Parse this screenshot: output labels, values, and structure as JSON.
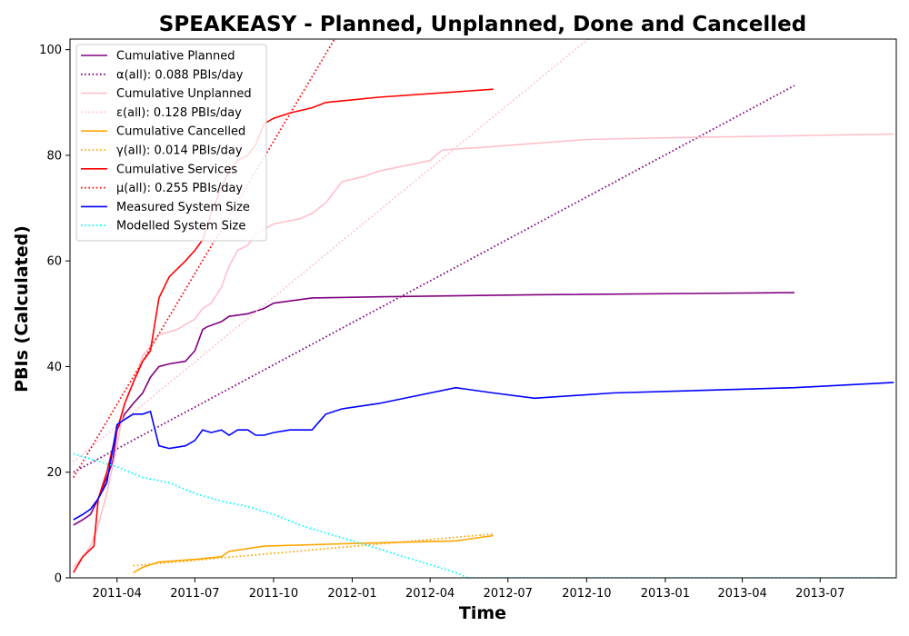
{
  "chart_data": {
    "type": "line",
    "title": "SPEAKEASY - Planned, Unplanned, Done  and Cancelled",
    "xlabel": "Time",
    "ylabel": "PBIs (Calculated)",
    "xlim": [
      "2011-02-05",
      "2013-09-28"
    ],
    "ylim": [
      0,
      102
    ],
    "xticks": [
      "2011-04",
      "2011-07",
      "2011-10",
      "2012-01",
      "2012-04",
      "2012-07",
      "2012-10",
      "2013-01",
      "2013-04",
      "2013-07"
    ],
    "yticks": [
      0,
      20,
      40,
      60,
      80,
      100
    ],
    "grid": false,
    "legend_position": "top-left",
    "series": [
      {
        "name": "Cumulative Planned",
        "color": "#800080",
        "style": "solid",
        "x": [
          "2011-02-09",
          "2011-02-20",
          "2011-03-01",
          "2011-03-10",
          "2011-03-20",
          "2011-03-27",
          "2011-04-01",
          "2011-04-10",
          "2011-04-20",
          "2011-05-01",
          "2011-05-10",
          "2011-05-20",
          "2011-06-01",
          "2011-06-20",
          "2011-07-01",
          "2011-07-10",
          "2011-07-15",
          "2011-08-01",
          "2011-08-10",
          "2011-09-01",
          "2011-09-20",
          "2011-10-01",
          "2011-11-15",
          "2012-02-01",
          "2012-08-01",
          "2013-06-01"
        ],
        "y": [
          10,
          11,
          12,
          15,
          19,
          22,
          28,
          31,
          33,
          35,
          38,
          40,
          40.5,
          41,
          43,
          47,
          47.5,
          48.5,
          49.5,
          50,
          51,
          52,
          53,
          53.2,
          53.6,
          54
        ]
      },
      {
        "name": "α(all): 0.088 PBIs/day",
        "color": "#800080",
        "style": "dotted",
        "x": [
          "2011-02-09",
          "2013-06-01"
        ],
        "y": [
          20,
          93.2
        ]
      },
      {
        "name": "Cumulative Unplanned",
        "color": "#ffc0cb",
        "style": "solid",
        "x": [
          "2011-02-09",
          "2011-02-20",
          "2011-03-01",
          "2011-03-10",
          "2011-03-20",
          "2011-04-01",
          "2011-04-10",
          "2011-04-20",
          "2011-05-01",
          "2011-05-20",
          "2011-06-10",
          "2011-07-01",
          "2011-07-10",
          "2011-07-20",
          "2011-08-01",
          "2011-08-10",
          "2011-08-20",
          "2011-09-01",
          "2011-09-10",
          "2011-09-20",
          "2011-10-01",
          "2011-11-01",
          "2011-11-15",
          "2011-12-01",
          "2011-12-20",
          "2012-01-15",
          "2012-02-01",
          "2012-04-01",
          "2012-04-15",
          "2012-06-01",
          "2012-10-01",
          "2013-01-01",
          "2013-09-25"
        ],
        "y": [
          2,
          4,
          6,
          10,
          16,
          25,
          33,
          37,
          42,
          46,
          47,
          49,
          51,
          52,
          55,
          59,
          62,
          63,
          65,
          66,
          67,
          68,
          69,
          71,
          75,
          76,
          77,
          79,
          81,
          81.5,
          83,
          83.3,
          84
        ]
      },
      {
        "name": "ε(all): 0.128 PBIs/day",
        "color": "#ffc0cb",
        "style": "dotted",
        "x": [
          "2011-02-09",
          "2012-10-10"
        ],
        "y": [
          22,
          103
        ]
      },
      {
        "name": "Cumulative Cancelled",
        "color": "#ffa500",
        "style": "solid",
        "x": [
          "2011-04-20",
          "2011-05-01",
          "2011-05-20",
          "2011-07-01",
          "2011-08-01",
          "2011-08-10",
          "2011-09-20",
          "2012-01-01",
          "2012-05-01",
          "2012-06-14"
        ],
        "y": [
          1,
          2,
          3,
          3.5,
          4,
          5,
          6,
          6.5,
          7,
          8
        ]
      },
      {
        "name": "γ(all): 0.014 PBIs/day",
        "color": "#ffa500",
        "style": "dotted",
        "x": [
          "2011-04-20",
          "2012-06-14"
        ],
        "y": [
          2.3,
          8.3
        ]
      },
      {
        "name": "Cumulative Services",
        "color": "#ff0000",
        "style": "solid",
        "x": [
          "2011-02-09",
          "2011-02-20",
          "2011-03-05",
          "2011-03-10",
          "2011-03-20",
          "2011-04-01",
          "2011-04-10",
          "2011-04-20",
          "2011-05-01",
          "2011-05-10",
          "2011-05-20",
          "2011-06-01",
          "2011-06-20",
          "2011-07-01",
          "2011-07-10",
          "2011-07-20",
          "2011-08-01",
          "2011-08-10",
          "2011-08-20",
          "2011-09-01",
          "2011-09-10",
          "2011-09-20",
          "2011-10-01",
          "2011-10-20",
          "2011-11-15",
          "2011-12-01",
          "2012-02-01",
          "2012-06-14"
        ],
        "y": [
          1,
          4,
          6,
          15,
          20,
          28,
          33,
          37,
          41,
          43,
          53,
          57,
          60,
          62,
          64,
          69,
          74,
          77,
          79,
          80,
          82,
          86,
          87,
          88,
          89,
          90,
          91,
          92.5
        ]
      },
      {
        "name": "μ(all): 0.255 PBIs/day",
        "color": "#ff0000",
        "style": "dotted",
        "x": [
          "2011-02-09",
          "2011-12-15"
        ],
        "y": [
          19,
          103
        ]
      },
      {
        "name": "Measured System Size",
        "color": "#0000ff",
        "style": "solid",
        "x": [
          "2011-02-09",
          "2011-02-20",
          "2011-03-01",
          "2011-03-10",
          "2011-03-20",
          "2011-04-01",
          "2011-04-10",
          "2011-04-20",
          "2011-05-01",
          "2011-05-10",
          "2011-05-20",
          "2011-06-01",
          "2011-06-20",
          "2011-07-01",
          "2011-07-10",
          "2011-07-20",
          "2011-08-01",
          "2011-08-10",
          "2011-08-20",
          "2011-09-01",
          "2011-09-10",
          "2011-09-20",
          "2011-10-01",
          "2011-10-20",
          "2011-11-15",
          "2011-12-01",
          "2011-12-20",
          "2012-02-01",
          "2012-04-01",
          "2012-05-01",
          "2012-06-14",
          "2012-08-01",
          "2012-11-01",
          "2013-06-01",
          "2013-09-25"
        ],
        "y": [
          11,
          12,
          13,
          15,
          18,
          29,
          30,
          31,
          31,
          31.5,
          25,
          24.5,
          25,
          26,
          28,
          27.5,
          28,
          27,
          28,
          28,
          27,
          27,
          27.5,
          28,
          28,
          31,
          32,
          33,
          35,
          36,
          35,
          34,
          35,
          36,
          37
        ]
      },
      {
        "name": "Modelled System Size",
        "color": "#00ffff",
        "style": "dotted",
        "x": [
          "2011-02-09",
          "2011-03-01",
          "2011-04-01",
          "2011-05-01",
          "2011-06-01",
          "2011-07-01",
          "2011-08-01",
          "2011-09-01",
          "2011-10-01",
          "2011-11-01",
          "2011-12-01",
          "2012-01-01",
          "2012-02-01",
          "2012-03-01",
          "2012-04-01",
          "2012-05-01",
          "2012-05-15",
          "2013-09-25"
        ],
        "y": [
          23.5,
          22.5,
          21,
          19,
          18,
          16,
          14.5,
          13.5,
          12,
          10,
          8.5,
          7,
          5.5,
          4,
          2.5,
          1,
          0,
          0
        ]
      }
    ]
  }
}
